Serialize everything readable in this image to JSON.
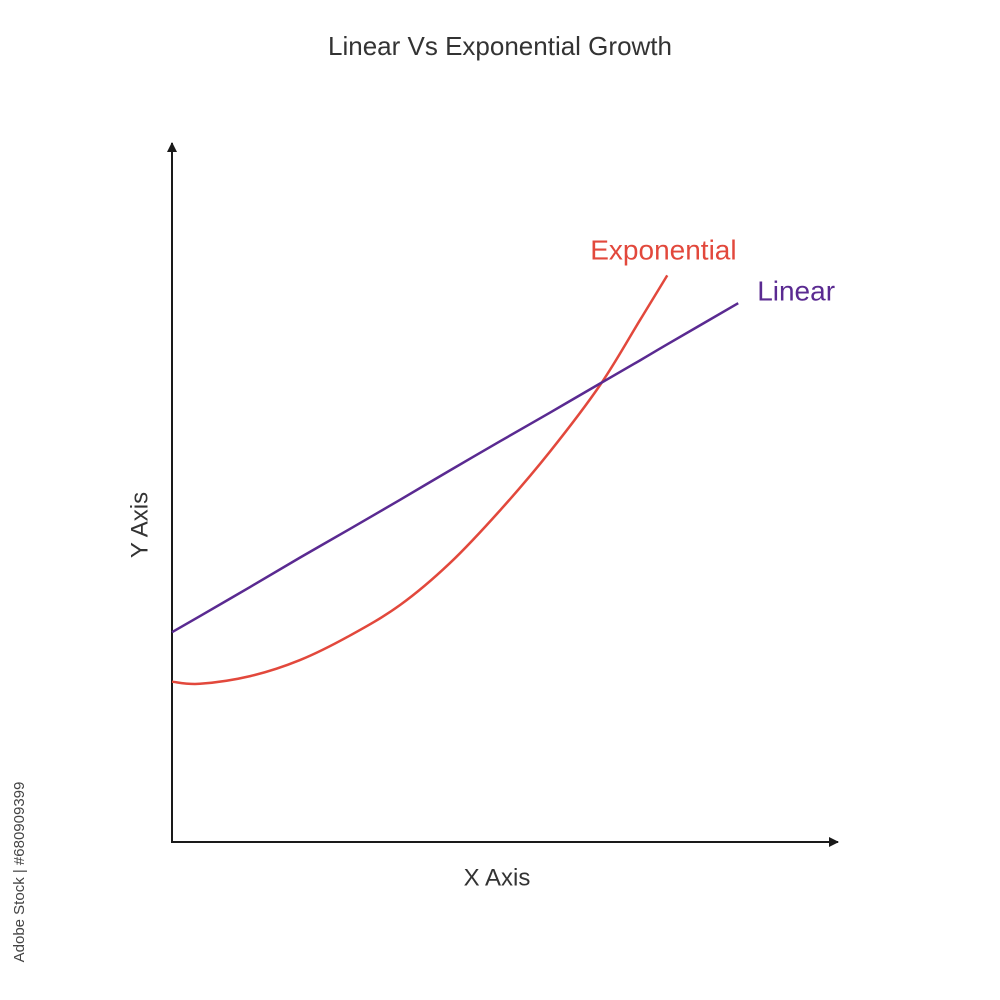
{
  "chart_data": {
    "type": "line",
    "title": "Linear Vs Exponential Growth",
    "x_label": "X Axis",
    "y_label": "Y Axis",
    "x": [
      0,
      4.2,
      11.8,
      19.3,
      26.8,
      34.4,
      41.9,
      49.5,
      57.0,
      64.6,
      70.6,
      74.7,
      85.4
    ],
    "series": [
      {
        "name": "Exponential",
        "color": "#e2483c",
        "values": [
          23.0,
          22.7,
          23.8,
          26.1,
          29.6,
          34.0,
          40.0,
          47.6,
          56.0,
          65.6,
          74.9,
          81.3,
          null
        ]
      },
      {
        "name": "Linear",
        "color": "#5a2a91",
        "values": [
          30.1,
          32.4,
          36.6,
          40.8,
          44.9,
          49.1,
          53.3,
          57.5,
          61.6,
          65.8,
          69.1,
          71.4,
          77.3
        ]
      }
    ],
    "xlim": [
      0,
      100
    ],
    "ylim": [
      0,
      100
    ],
    "watermark": "Adobe Stock | #680909399"
  }
}
